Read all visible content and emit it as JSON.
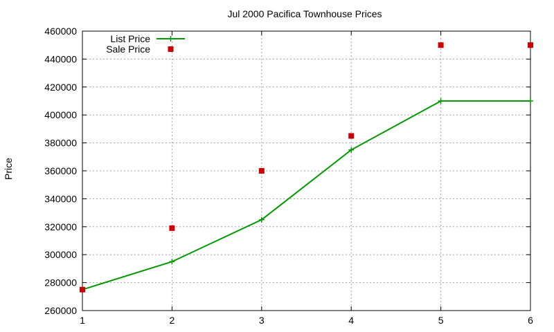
{
  "chart_data": {
    "type": "line",
    "title": "Jul 2000 Pacifica Townhouse Prices",
    "xlabel": "",
    "ylabel": "Price",
    "xlim": [
      1,
      6
    ],
    "ylim": [
      260000,
      460000
    ],
    "x_ticks": [
      "1",
      "2",
      "3",
      "4",
      "5",
      "6"
    ],
    "y_ticks": [
      "260000",
      "280000",
      "300000",
      "320000",
      "340000",
      "360000",
      "380000",
      "400000",
      "420000",
      "440000",
      "460000"
    ],
    "grid": true,
    "legend_position": "top-left",
    "series": [
      {
        "name": "List Price",
        "style": "line-with-plus-markers",
        "color": "#009900",
        "x": [
          1,
          2,
          3,
          4,
          5,
          6
        ],
        "values": [
          275000,
          295000,
          325000,
          375000,
          410000,
          410000
        ]
      },
      {
        "name": "Sale Price",
        "style": "square-markers",
        "color": "#cc0000",
        "x": [
          1,
          2,
          3,
          4,
          5,
          6
        ],
        "values": [
          275000,
          319000,
          360000,
          385000,
          450000,
          450000
        ]
      }
    ]
  }
}
